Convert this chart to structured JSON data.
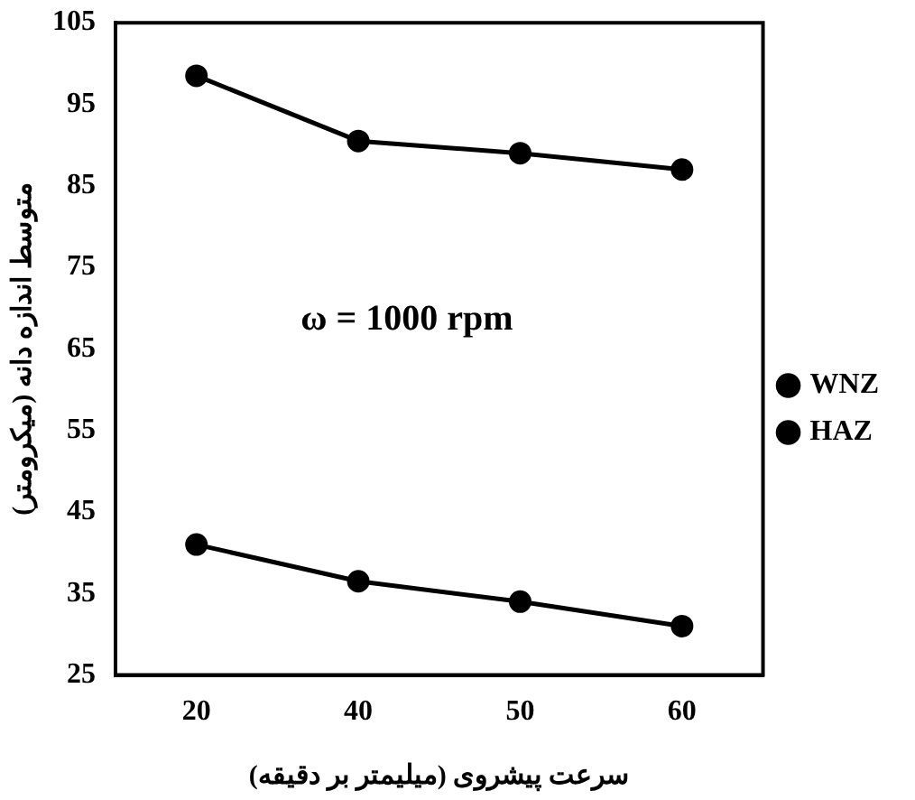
{
  "chart_data": {
    "type": "line",
    "xlabel": "سرعت پیشروی (میلیمتر بر دقیقه)",
    "ylabel": "متوسط اندازه دانه (میکرومتر)",
    "categories": [
      "20",
      "40",
      "50",
      "60"
    ],
    "series": [
      {
        "name": "WNZ",
        "color": "#000000",
        "values": [
          41,
          36.5,
          34,
          31
        ]
      },
      {
        "name": "HAZ",
        "color": "#000000",
        "values": [
          98.5,
          90.5,
          89,
          87
        ]
      }
    ],
    "ylim": [
      25,
      105
    ],
    "yticks": [
      25,
      35,
      45,
      55,
      65,
      75,
      85,
      95,
      105
    ],
    "grid": false,
    "legend": "right",
    "marker": "circle",
    "line_style": "solid",
    "annotations": [
      "ω = 1000 rpm"
    ]
  }
}
